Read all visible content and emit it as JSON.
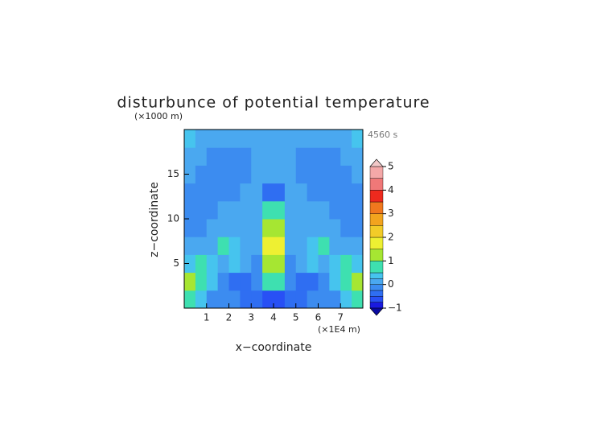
{
  "chart_data": {
    "type": "contour",
    "title": "disturbunce of potential temperature",
    "y_unit": "(×1000 m)",
    "x_unit": "(×1E4 m)",
    "time_label": "4560 s",
    "xlabel": "x−coordinate",
    "ylabel": "z−coordinate",
    "xlim": [
      0,
      8
    ],
    "ylim": [
      0,
      20
    ],
    "xticks": [
      1,
      2,
      3,
      4,
      5,
      6,
      7
    ],
    "yticks": [
      5,
      10,
      15
    ],
    "x": [
      0.25,
      0.75,
      1.25,
      1.75,
      2.25,
      2.75,
      3.25,
      3.75,
      4.25,
      4.75,
      5.25,
      5.75,
      6.25,
      6.75,
      7.25,
      7.75
    ],
    "z": [
      1,
      3,
      5,
      7,
      9,
      11,
      13,
      15,
      17,
      19
    ],
    "values": [
      [
        0.5,
        0.25,
        -0.1,
        -0.1,
        -0.2,
        -0.3,
        -0.4,
        -0.6,
        -0.6,
        -0.4,
        -0.3,
        -0.2,
        -0.1,
        -0.1,
        0.25,
        0.5
      ],
      [
        1.2,
        0.8,
        0.3,
        -0.2,
        -0.4,
        -0.3,
        -0.2,
        0.8,
        0.8,
        -0.2,
        -0.3,
        -0.4,
        -0.2,
        0.3,
        0.8,
        1.2
      ],
      [
        0.3,
        0.6,
        0.4,
        0.1,
        0.3,
        0.1,
        -0.1,
        1.2,
        1.2,
        -0.1,
        0.1,
        0.3,
        0.1,
        0.4,
        0.6,
        0.3
      ],
      [
        0.1,
        0.1,
        0.2,
        0.5,
        0.3,
        0.1,
        0,
        1.5,
        1.5,
        0,
        0.1,
        0.3,
        0.5,
        0.2,
        0.1,
        0.1
      ],
      [
        -0.1,
        -0.1,
        0,
        0.1,
        0.2,
        0.1,
        0,
        1.2,
        1.2,
        0,
        0.1,
        0.2,
        0.1,
        0,
        -0.1,
        -0.1
      ],
      [
        -0.1,
        -0.1,
        -0.1,
        0,
        0.1,
        0.1,
        0,
        0.6,
        0.6,
        0,
        0.1,
        0.1,
        0,
        -0.1,
        -0.1,
        -0.1
      ],
      [
        -0.1,
        -0.1,
        -0.1,
        -0.1,
        -0.1,
        0.1,
        0.1,
        -0.3,
        -0.3,
        0.1,
        0.1,
        -0.1,
        -0.1,
        -0.1,
        -0.1,
        -0.1
      ],
      [
        0,
        -0.1,
        -0.1,
        -0.1,
        -0.1,
        -0.1,
        0.1,
        0.1,
        0.1,
        0.1,
        -0.1,
        -0.1,
        -0.1,
        -0.1,
        -0.1,
        0
      ],
      [
        0.1,
        0,
        -0.1,
        -0.1,
        -0.1,
        -0.1,
        0,
        0.1,
        0.1,
        0,
        -0.1,
        -0.1,
        -0.1,
        -0.1,
        0,
        0.1
      ],
      [
        0.3,
        0.1,
        0,
        0,
        0,
        0,
        0,
        0,
        0,
        0,
        0,
        0,
        0,
        0,
        0.1,
        0.3
      ]
    ],
    "levels": [
      -1,
      -0.75,
      -0.5,
      -0.25,
      0,
      0.25,
      0.5,
      1,
      1.5,
      2,
      2.5,
      3,
      3.5,
      4,
      4.5,
      5
    ],
    "colors": [
      "#0a0aa0",
      "#1a1ae0",
      "#2850f5",
      "#2f6ef2",
      "#3c8cf0",
      "#4aa8f0",
      "#46c4ee",
      "#3ee0b0",
      "#a6e632",
      "#eef032",
      "#f2cc28",
      "#f2a41e",
      "#f0781e",
      "#ee2a1e",
      "#f07878",
      "#f4a8a8",
      "#f2c8c8"
    ],
    "cbar_ticks": [
      {
        "value": -1,
        "label": "−1"
      },
      0,
      1,
      2,
      3,
      4,
      5
    ]
  }
}
